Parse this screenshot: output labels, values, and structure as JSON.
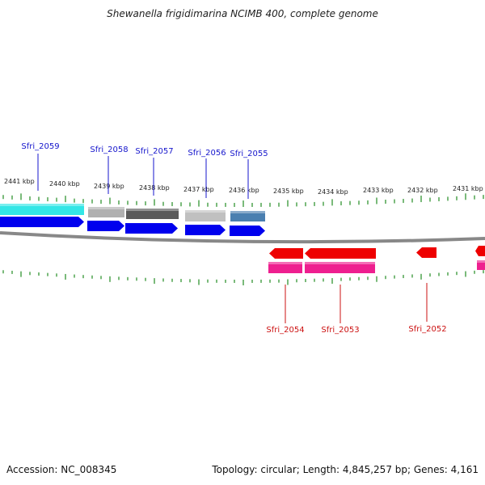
{
  "title": "Shewanella frigidimarina NCIMB 400, complete genome",
  "footer": {
    "accession": "Accession: NC_008345",
    "summary": "Topology: circular; Length: 4,845,257 bp; Genes: 4,161"
  },
  "ruler_labels": [
    "2441 kbp",
    "2440 kbp",
    "2439 kbp",
    "2438 kbp",
    "2437 kbp",
    "2436 kbp",
    "2435 kbp",
    "2434 kbp",
    "2433 kbp",
    "2432 kbp",
    "2431 kbp"
  ],
  "genes": [
    {
      "name": "Sfri_2059",
      "strand": "+",
      "color": "#1515cc"
    },
    {
      "name": "Sfri_2058",
      "strand": "+",
      "color": "#1515cc"
    },
    {
      "name": "Sfri_2057",
      "strand": "+",
      "color": "#1515cc"
    },
    {
      "name": "Sfri_2056",
      "strand": "+",
      "color": "#1515cc"
    },
    {
      "name": "Sfri_2055",
      "strand": "+",
      "color": "#1515cc"
    },
    {
      "name": "Sfri_2054",
      "strand": "-",
      "color": "#cc1111"
    },
    {
      "name": "Sfri_2053",
      "strand": "-",
      "color": "#cc1111"
    },
    {
      "name": "Sfri_2052",
      "strand": "-",
      "color": "#cc1111"
    }
  ],
  "colors": {
    "forward_gene": "#0000ee",
    "reverse_gene": "#ee0000",
    "reverse_feature": "#ee1f8f",
    "backbone": "#888888",
    "tick": "#228b22",
    "feature_cyan": "#33e6e6",
    "feature_light_gray": "#b0b0b0",
    "feature_dark_gray": "#5a5a5a",
    "feature_silver": "#c0c0c0",
    "feature_steel_blue": "#4a7fb0"
  }
}
